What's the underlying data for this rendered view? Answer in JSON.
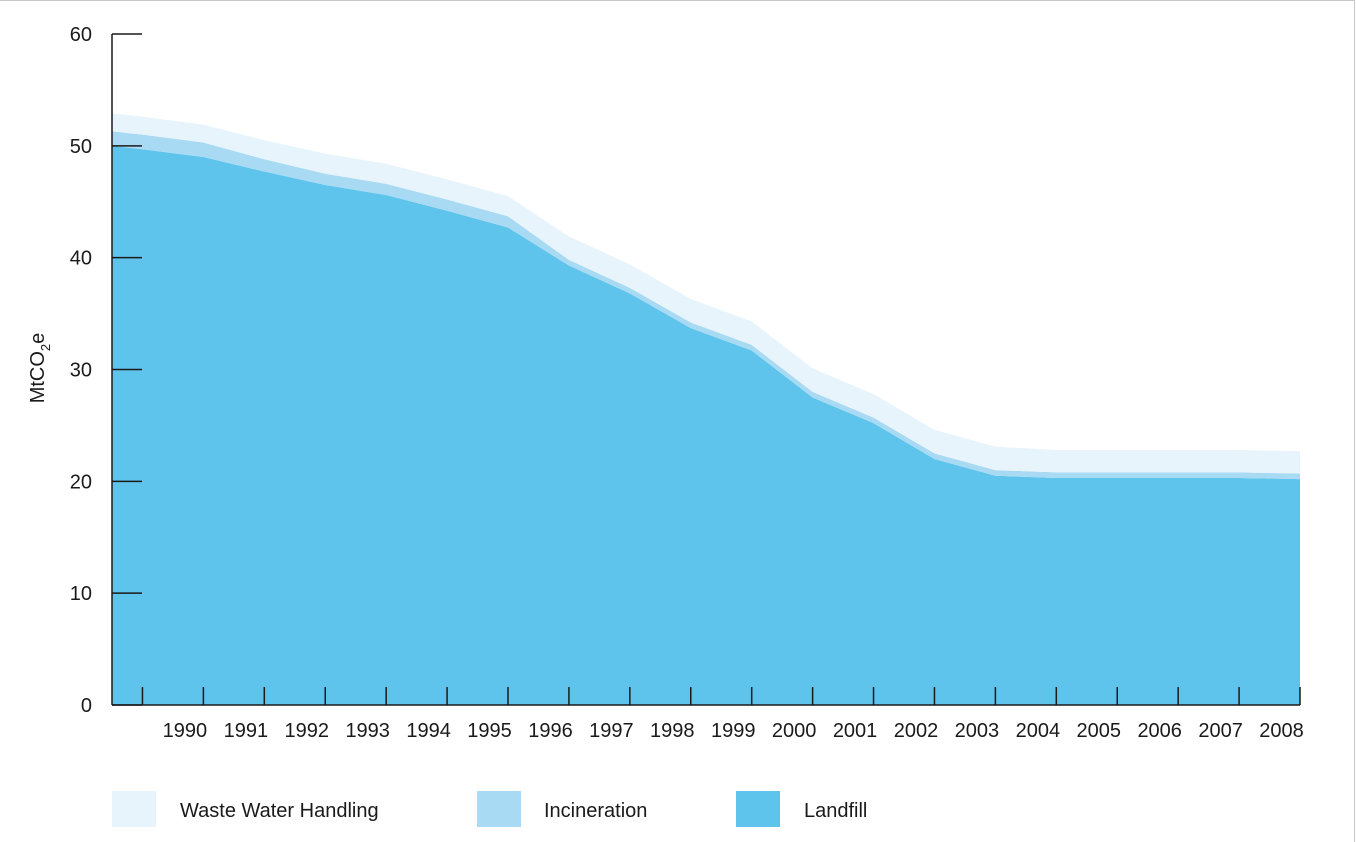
{
  "chart_data": {
    "type": "area",
    "stacked": true,
    "ylabel_parts": {
      "main": "MtCO",
      "sub": "2",
      "tail": "e"
    },
    "ylim": [
      0,
      60
    ],
    "yticks": [
      0,
      10,
      20,
      30,
      40,
      50,
      60
    ],
    "xlabels": [
      "1990",
      "1991",
      "1992",
      "1993",
      "1994",
      "1995",
      "1996",
      "1997",
      "1998",
      "1999",
      "2000",
      "2001",
      "2002",
      "2003",
      "2004",
      "2005",
      "2006",
      "2007",
      "2008"
    ],
    "x": [
      1989.0,
      1989.5,
      1990.5,
      1991.5,
      1992.5,
      1993.5,
      1994.5,
      1995.5,
      1996.5,
      1997.5,
      1998.5,
      1999.5,
      2000.5,
      2001.5,
      2002.5,
      2003.5,
      2004.5,
      2005.5,
      2006.5,
      2007.5,
      2008.5
    ],
    "series": [
      {
        "name": "Landfill",
        "color": "#5fc4ec",
        "values": [
          50.0,
          49.7,
          49.0,
          47.7,
          46.5,
          45.6,
          44.2,
          42.7,
          39.3,
          36.8,
          33.7,
          31.7,
          27.5,
          25.2,
          22.0,
          20.5,
          20.3,
          20.3,
          20.3,
          20.3,
          20.2
        ]
      },
      {
        "name": "Incineration",
        "color": "#a8daf3",
        "values": [
          1.3,
          1.3,
          1.3,
          1.1,
          1.0,
          1.0,
          1.0,
          1.0,
          0.5,
          0.5,
          0.5,
          0.5,
          0.5,
          0.5,
          0.5,
          0.5,
          0.5,
          0.5,
          0.5,
          0.5,
          0.5
        ]
      },
      {
        "name": "Waste Water Handling",
        "color": "#e8f4fc",
        "values": [
          1.6,
          1.6,
          1.6,
          1.7,
          1.8,
          1.8,
          1.8,
          1.8,
          2.1,
          2.1,
          2.1,
          2.1,
          2.1,
          2.1,
          2.1,
          2.1,
          2.0,
          2.0,
          2.0,
          2.0,
          2.0
        ]
      }
    ],
    "legend": [
      {
        "label": "Waste Water Handling",
        "color": "#e8f4fc"
      },
      {
        "label": "Incineration",
        "color": "#a8daf3"
      },
      {
        "label": "Landfill",
        "color": "#5fc4ec"
      }
    ],
    "legend_position": "bottom"
  }
}
